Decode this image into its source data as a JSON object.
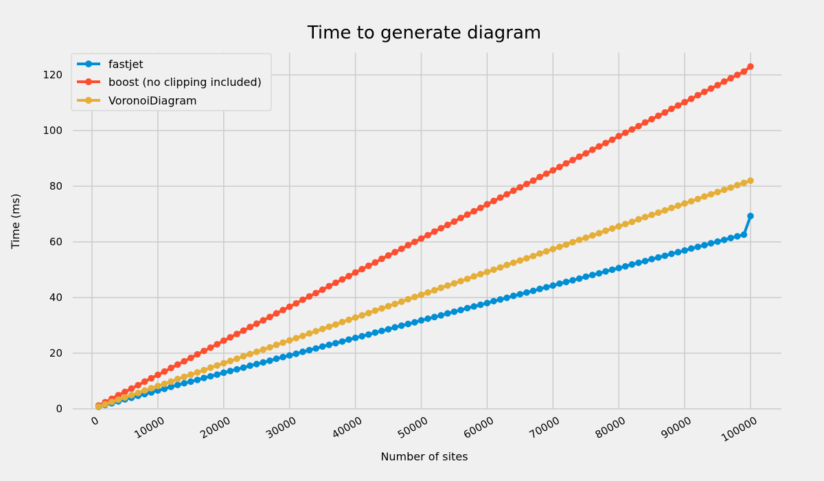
{
  "chart_data": {
    "type": "line",
    "title": "Time to generate diagram",
    "xlabel": "Number of sites",
    "ylabel": "Time (ms)",
    "xlim": [
      0,
      100000
    ],
    "ylim": [
      0,
      128
    ],
    "x_ticks": [
      0,
      10000,
      20000,
      30000,
      40000,
      50000,
      60000,
      70000,
      80000,
      90000,
      100000
    ],
    "y_ticks": [
      0,
      20,
      40,
      60,
      80,
      100,
      120
    ],
    "grid": true,
    "legend_position": "top-left",
    "x_start": 1000,
    "x_step": 1000,
    "series": [
      {
        "name": "fastjet",
        "color": "#008fd5",
        "values": [
          0.7,
          1.4,
          2.0,
          2.7,
          3.4,
          4.0,
          4.7,
          5.3,
          5.9,
          6.6,
          7.2,
          7.9,
          8.6,
          9.2,
          9.8,
          10.4,
          11.1,
          11.7,
          12.3,
          13.0,
          13.6,
          14.2,
          14.8,
          15.5,
          16.1,
          16.7,
          17.3,
          18.0,
          18.6,
          19.2,
          19.8,
          20.5,
          21.1,
          21.7,
          22.4,
          23.0,
          23.6,
          24.2,
          24.9,
          25.5,
          26.1,
          26.7,
          27.4,
          28.0,
          28.6,
          29.3,
          29.9,
          30.5,
          31.1,
          31.8,
          32.4,
          33.0,
          33.6,
          34.3,
          34.9,
          35.5,
          36.2,
          36.8,
          37.4,
          38.0,
          38.7,
          39.3,
          39.9,
          40.6,
          41.2,
          41.8,
          42.4,
          43.1,
          43.7,
          44.3,
          45.0,
          45.6,
          46.2,
          46.8,
          47.5,
          48.1,
          48.7,
          49.4,
          50.0,
          50.6,
          51.2,
          51.9,
          52.5,
          53.1,
          53.8,
          54.4,
          55.0,
          55.7,
          56.3,
          56.9,
          57.6,
          58.2,
          58.8,
          59.5,
          60.1,
          60.7,
          61.4,
          62.0,
          62.6,
          69.3
        ]
      },
      {
        "name": "boost (no clipping included)",
        "color": "#fc4f30",
        "values": [
          1.2,
          2.4,
          3.6,
          4.9,
          6.1,
          7.3,
          8.5,
          9.8,
          11.0,
          12.2,
          13.4,
          14.7,
          15.9,
          17.1,
          18.3,
          19.6,
          20.8,
          22.0,
          23.2,
          24.5,
          25.7,
          26.9,
          28.1,
          29.4,
          30.6,
          31.8,
          33.0,
          34.3,
          35.5,
          36.7,
          37.9,
          39.2,
          40.4,
          41.6,
          42.8,
          44.1,
          45.3,
          46.5,
          47.7,
          49.0,
          50.2,
          51.4,
          52.6,
          53.9,
          55.1,
          56.3,
          57.5,
          58.8,
          60.0,
          61.2,
          62.4,
          63.7,
          64.9,
          66.1,
          67.3,
          68.6,
          69.8,
          71.0,
          72.2,
          73.5,
          74.7,
          75.9,
          77.1,
          78.4,
          79.6,
          80.8,
          82.0,
          83.3,
          84.5,
          85.7,
          86.9,
          88.2,
          89.4,
          90.6,
          91.8,
          93.1,
          94.3,
          95.5,
          96.7,
          98.0,
          99.2,
          100.4,
          101.6,
          102.9,
          104.1,
          105.3,
          106.5,
          107.8,
          109.0,
          110.2,
          111.4,
          112.7,
          113.9,
          115.1,
          116.3,
          117.6,
          118.8,
          120.0,
          121.2,
          123.0
        ]
      },
      {
        "name": "VoronoiDiagram",
        "color": "#e5ae38",
        "values": [
          0.8,
          1.6,
          2.5,
          3.3,
          4.1,
          4.9,
          5.7,
          6.6,
          7.4,
          8.2,
          9.0,
          9.8,
          10.7,
          11.5,
          12.3,
          13.1,
          13.9,
          14.8,
          15.6,
          16.4,
          17.2,
          18.0,
          18.9,
          19.7,
          20.5,
          21.3,
          22.1,
          23.0,
          23.8,
          24.6,
          25.4,
          26.2,
          27.1,
          27.9,
          28.7,
          29.5,
          30.3,
          31.2,
          32.0,
          32.8,
          33.6,
          34.4,
          35.3,
          36.1,
          36.9,
          37.7,
          38.5,
          39.4,
          40.2,
          41.0,
          41.8,
          42.6,
          43.5,
          44.3,
          45.1,
          45.9,
          46.7,
          47.6,
          48.4,
          49.2,
          50.0,
          50.8,
          51.7,
          52.5,
          53.3,
          54.1,
          54.9,
          55.8,
          56.6,
          57.4,
          58.2,
          59.0,
          59.9,
          60.7,
          61.5,
          62.3,
          63.1,
          64.0,
          64.8,
          65.6,
          66.4,
          67.2,
          68.1,
          68.9,
          69.7,
          70.5,
          71.3,
          72.2,
          73.0,
          73.8,
          74.6,
          75.4,
          76.3,
          77.1,
          77.9,
          78.7,
          79.5,
          80.4,
          81.2,
          82.0
        ]
      }
    ]
  }
}
